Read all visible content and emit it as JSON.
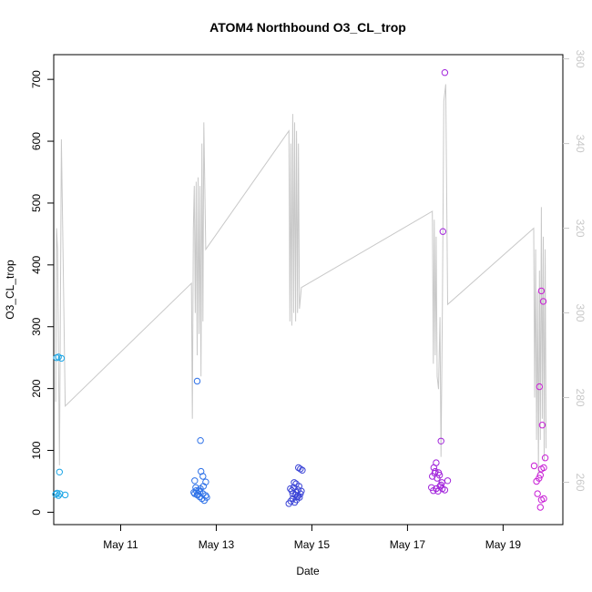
{
  "chart_data": {
    "type": "scatter",
    "title": "ATOM4 Northbound O3_CL_trop",
    "xlabel": "Date",
    "ylabel": "O3_CL_trop",
    "xlim": [
      9.6,
      20.25
    ],
    "ylim": [
      -20,
      740
    ],
    "x_ticks": [
      {
        "value": 11,
        "label": "May 11"
      },
      {
        "value": 13,
        "label": "May 13"
      },
      {
        "value": 15,
        "label": "May 15"
      },
      {
        "value": 17,
        "label": "May 17"
      },
      {
        "value": 19,
        "label": "May 19"
      }
    ],
    "y_ticks": [
      0,
      100,
      200,
      300,
      400,
      500,
      600,
      700
    ],
    "y2lim": [
      250,
      361
    ],
    "y2_ticks": [
      260,
      280,
      300,
      320,
      340,
      360
    ],
    "grid": false,
    "legend": "none",
    "scatter_series": [
      {
        "color": "#1ba6e6",
        "points": [
          [
            9.66,
            250
          ],
          [
            9.7,
            251
          ],
          [
            9.76,
            249
          ],
          [
            9.72,
            65
          ],
          [
            9.64,
            29
          ],
          [
            9.67,
            31
          ],
          [
            9.7,
            27
          ],
          [
            9.73,
            30
          ],
          [
            9.84,
            28
          ]
        ]
      },
      {
        "color": "#2f72e8",
        "points": [
          [
            12.6,
            212
          ],
          [
            12.67,
            116
          ],
          [
            12.55,
            51
          ],
          [
            12.72,
            58
          ],
          [
            12.78,
            49
          ],
          [
            12.68,
            66
          ],
          [
            12.53,
            32
          ],
          [
            12.55,
            30
          ],
          [
            12.57,
            40
          ],
          [
            12.6,
            28
          ],
          [
            12.63,
            35
          ],
          [
            12.65,
            25
          ],
          [
            12.67,
            38
          ],
          [
            12.7,
            22
          ],
          [
            12.72,
            30
          ],
          [
            12.73,
            42
          ],
          [
            12.75,
            19
          ],
          [
            12.78,
            27
          ],
          [
            12.8,
            24
          ],
          [
            12.58,
            35
          ],
          [
            12.62,
            30
          ],
          [
            12.66,
            33
          ]
        ]
      },
      {
        "color": "#3b44d6",
        "points": [
          [
            14.72,
            72
          ],
          [
            14.76,
            70
          ],
          [
            14.8,
            68
          ],
          [
            14.63,
            48
          ],
          [
            14.67,
            46
          ],
          [
            14.55,
            38
          ],
          [
            14.58,
            35
          ],
          [
            14.6,
            30
          ],
          [
            14.62,
            40
          ],
          [
            14.65,
            28
          ],
          [
            14.67,
            32
          ],
          [
            14.69,
            25
          ],
          [
            14.71,
            36
          ],
          [
            14.73,
            42
          ],
          [
            14.76,
            30
          ],
          [
            14.78,
            34
          ],
          [
            14.52,
            14
          ],
          [
            14.56,
            18
          ],
          [
            14.6,
            22
          ],
          [
            14.64,
            16
          ],
          [
            14.68,
            20
          ],
          [
            14.71,
            26
          ],
          [
            14.74,
            24
          ]
        ]
      },
      {
        "color": "#a124db",
        "points": [
          [
            17.78,
            711
          ],
          [
            17.74,
            454
          ],
          [
            17.7,
            115
          ],
          [
            17.6,
            80
          ],
          [
            17.55,
            72
          ],
          [
            17.58,
            66
          ],
          [
            17.52,
            58
          ],
          [
            17.62,
            55
          ],
          [
            17.67,
            60
          ],
          [
            17.72,
            48
          ],
          [
            17.84,
            51
          ],
          [
            17.5,
            40
          ],
          [
            17.54,
            35
          ],
          [
            17.6,
            38
          ],
          [
            17.64,
            34
          ],
          [
            17.68,
            42
          ],
          [
            17.73,
            38
          ],
          [
            17.78,
            36
          ],
          [
            17.57,
            63
          ],
          [
            17.65,
            64
          ],
          [
            17.7,
            44
          ]
        ]
      },
      {
        "color": "#c81ed6",
        "points": [
          [
            19.8,
            358
          ],
          [
            19.84,
            341
          ],
          [
            19.76,
            203
          ],
          [
            19.82,
            141
          ],
          [
            19.88,
            88
          ],
          [
            19.65,
            75
          ],
          [
            19.8,
            70
          ],
          [
            19.85,
            72
          ],
          [
            19.75,
            55
          ],
          [
            19.7,
            50
          ],
          [
            19.78,
            60
          ],
          [
            19.72,
            30
          ],
          [
            19.8,
            20
          ],
          [
            19.85,
            22
          ],
          [
            19.78,
            8
          ]
        ]
      }
    ],
    "line_series": {
      "color": "#c8c8c8",
      "axis": "right",
      "points": [
        [
          9.64,
          279
        ],
        [
          9.66,
          320
        ],
        [
          9.68,
          315
        ],
        [
          9.7,
          290
        ],
        [
          9.72,
          264
        ],
        [
          9.74,
          300
        ],
        [
          9.76,
          341
        ],
        [
          9.8,
          310
        ],
        [
          9.84,
          278
        ],
        [
          12.48,
          307
        ],
        [
          12.5,
          275
        ],
        [
          12.52,
          320
        ],
        [
          12.54,
          330
        ],
        [
          12.56,
          300
        ],
        [
          12.58,
          331
        ],
        [
          12.6,
          290
        ],
        [
          12.62,
          332
        ],
        [
          12.64,
          295
        ],
        [
          12.66,
          330
        ],
        [
          12.68,
          285
        ],
        [
          12.7,
          340
        ],
        [
          12.72,
          298
        ],
        [
          12.74,
          345
        ],
        [
          12.78,
          315
        ],
        [
          14.52,
          343
        ],
        [
          14.54,
          298
        ],
        [
          14.56,
          340
        ],
        [
          14.58,
          297
        ],
        [
          14.6,
          347
        ],
        [
          14.62,
          300
        ],
        [
          14.64,
          345
        ],
        [
          14.66,
          298
        ],
        [
          14.68,
          343
        ],
        [
          14.7,
          300
        ],
        [
          14.72,
          340
        ],
        [
          14.74,
          301
        ],
        [
          14.78,
          306
        ],
        [
          17.52,
          324
        ],
        [
          17.54,
          288
        ],
        [
          17.56,
          322
        ],
        [
          17.58,
          290
        ],
        [
          17.6,
          318
        ],
        [
          17.62,
          285
        ],
        [
          17.65,
          282
        ],
        [
          17.68,
          299
        ],
        [
          17.7,
          266
        ],
        [
          17.73,
          300
        ],
        [
          17.76,
          350
        ],
        [
          17.8,
          354
        ],
        [
          17.84,
          302
        ],
        [
          19.64,
          320
        ],
        [
          19.66,
          280
        ],
        [
          19.68,
          315
        ],
        [
          19.7,
          270
        ],
        [
          19.72,
          305
        ],
        [
          19.74,
          262
        ],
        [
          19.76,
          310
        ],
        [
          19.78,
          270
        ],
        [
          19.8,
          325
        ],
        [
          19.82,
          275
        ],
        [
          19.84,
          318
        ],
        [
          19.86,
          265
        ],
        [
          19.88,
          315
        ],
        [
          19.9,
          268
        ]
      ]
    }
  }
}
